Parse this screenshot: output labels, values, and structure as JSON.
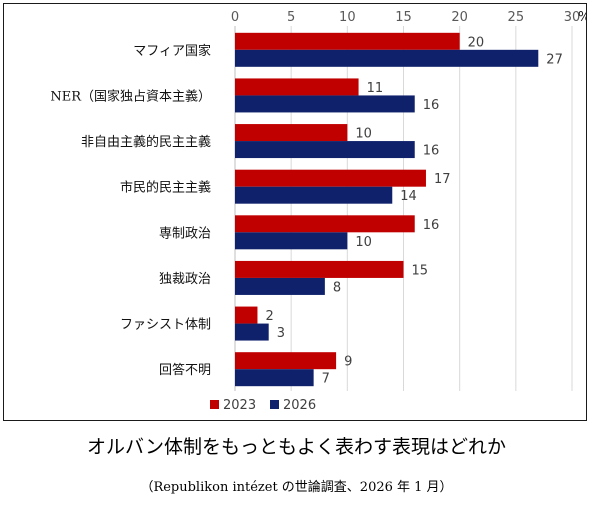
{
  "caption": {
    "title": "オルバン体制をもっともよく表わす表現はどれか",
    "source": "（Republikon intézet の世論調査、2026 年 1 月）"
  },
  "colors": {
    "series_2023": "#c00000",
    "series_2026": "#10216b",
    "gridline": "#d9d9d9",
    "axis": "#bfbfbf"
  },
  "chart_data": {
    "type": "bar",
    "orientation": "horizontal",
    "categories": [
      "マフィア国家",
      "NER（国家独占資本主義）",
      "非自由主義的民主主義",
      "市民的民主主義",
      "専制政治",
      "独裁政治",
      "ファシスト体制",
      "回答不明"
    ],
    "series": [
      {
        "name": "2023",
        "values": [
          20,
          11,
          10,
          17,
          16,
          15,
          2,
          9
        ]
      },
      {
        "name": "2026",
        "values": [
          27,
          16,
          16,
          14,
          10,
          8,
          3,
          7
        ]
      }
    ],
    "xlim": [
      0,
      30
    ],
    "xticks": [
      "0",
      "5",
      "10",
      "15",
      "20",
      "25",
      "30"
    ],
    "x_unit": "%",
    "axis_position": "top",
    "grid": true,
    "legend_position": "bottom-left"
  }
}
